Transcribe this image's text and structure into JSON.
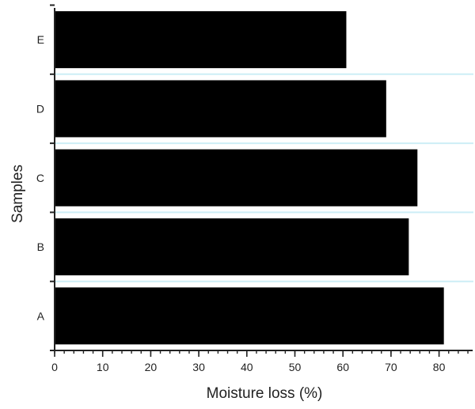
{
  "chart_data": {
    "type": "bar",
    "orientation": "horizontal",
    "categories": [
      "A",
      "B",
      "C",
      "D",
      "E"
    ],
    "values": [
      81,
      73.7,
      75.5,
      69,
      60.7
    ],
    "title": "",
    "xlabel": "Moisture loss (%)",
    "ylabel": "Samples",
    "xlim": [
      0,
      87
    ],
    "x_ticks": [
      0,
      10,
      20,
      30,
      40,
      50,
      60,
      70,
      80
    ],
    "x_minor_step": 2,
    "grid": false,
    "bar_color": "#000000",
    "separator_color": "#cdeef6"
  }
}
